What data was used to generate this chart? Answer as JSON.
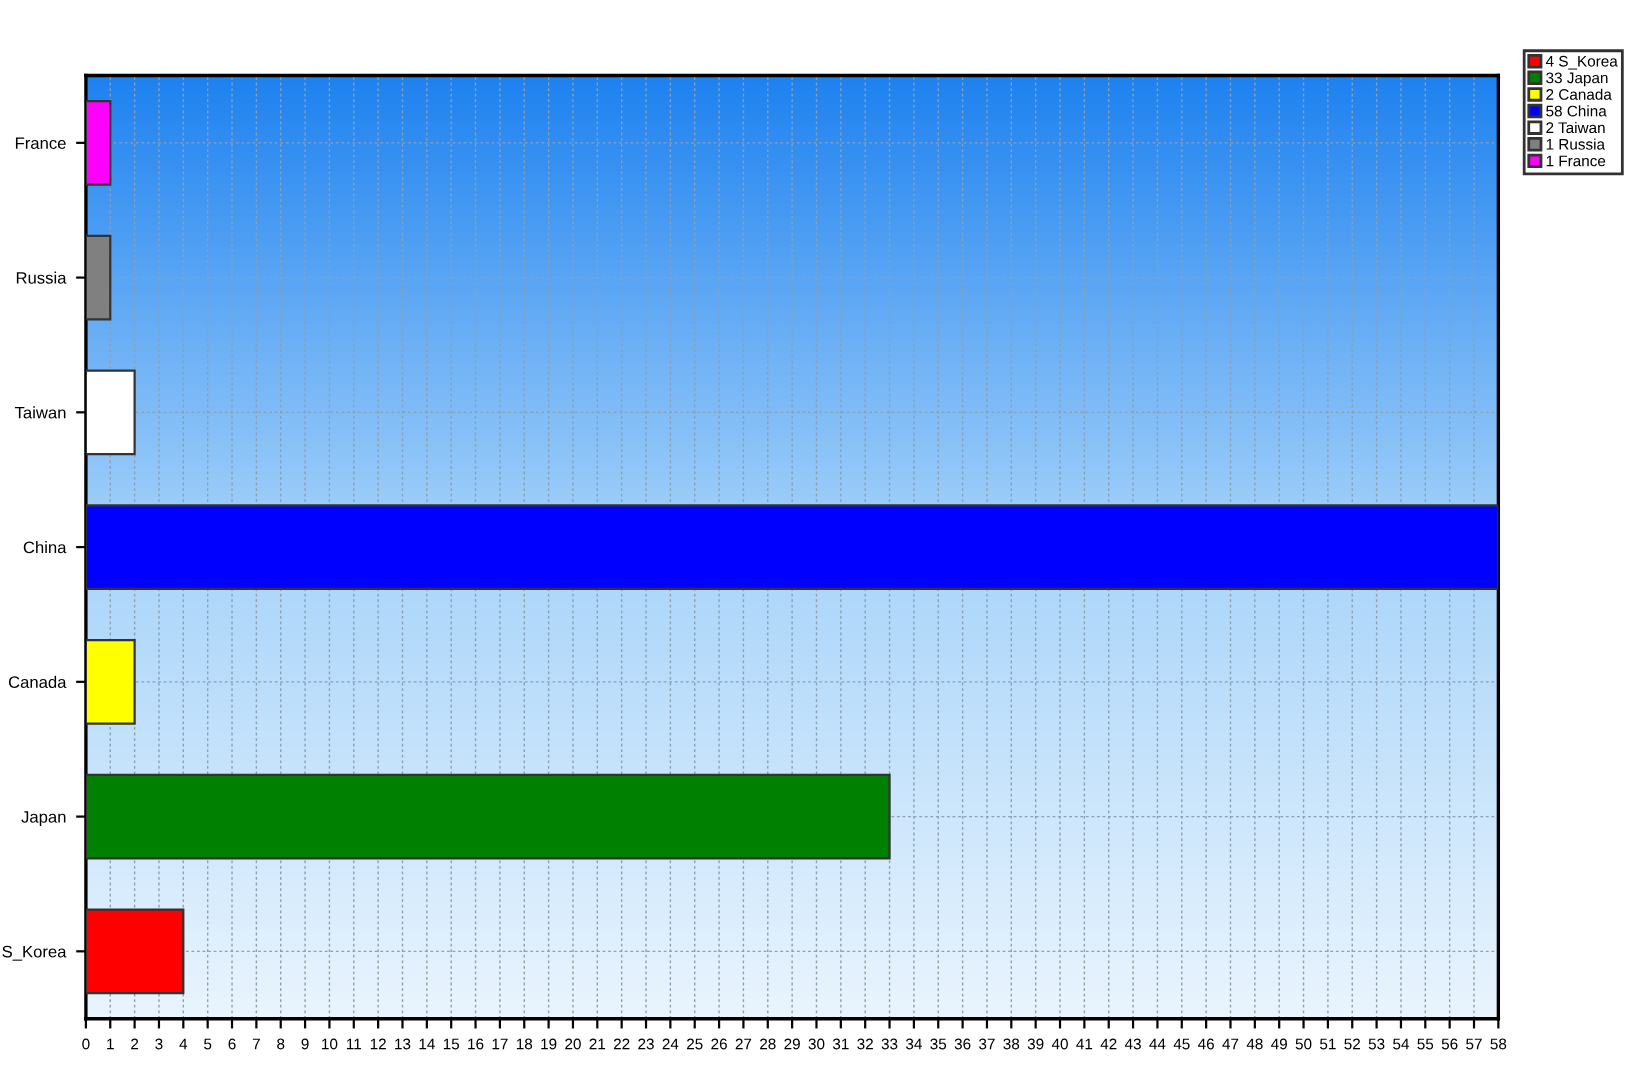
{
  "chart_data": {
    "type": "bar",
    "orientation": "horizontal",
    "categories": [
      "France",
      "Russia",
      "Taiwan",
      "China",
      "Canada",
      "Japan",
      "S_Korea"
    ],
    "series": [
      {
        "name": "4 S_Korea",
        "color": "#ff0000",
        "values": [
          null,
          null,
          null,
          null,
          null,
          null,
          4
        ]
      },
      {
        "name": "33 Japan",
        "color": "#008000",
        "values": [
          null,
          null,
          null,
          null,
          null,
          33,
          null
        ]
      },
      {
        "name": "2 Canada",
        "color": "#ffff00",
        "values": [
          null,
          null,
          null,
          null,
          2,
          null,
          null
        ]
      },
      {
        "name": "58 China",
        "color": "#0000ff",
        "values": [
          null,
          null,
          null,
          58,
          null,
          null,
          null
        ]
      },
      {
        "name": "2 Taiwan",
        "color": "#ffffff",
        "values": [
          null,
          null,
          2,
          null,
          null,
          null,
          null
        ]
      },
      {
        "name": "1 Russia",
        "color": "#808080",
        "values": [
          null,
          1,
          null,
          null,
          null,
          null,
          null
        ]
      },
      {
        "name": "1 France",
        "color": "#ff00ff",
        "values": [
          1,
          null,
          null,
          null,
          null,
          null,
          null
        ]
      }
    ],
    "xlim": [
      0,
      58
    ],
    "xticks": [
      0,
      1,
      2,
      3,
      4,
      5,
      6,
      7,
      8,
      9,
      10,
      11,
      12,
      13,
      14,
      15,
      16,
      17,
      18,
      19,
      20,
      21,
      22,
      23,
      24,
      25,
      26,
      27,
      28,
      29,
      30,
      31,
      32,
      33,
      34,
      35,
      36,
      37,
      38,
      39,
      40,
      41,
      42,
      43,
      44,
      45,
      46,
      47,
      48,
      49,
      50,
      51,
      52,
      53,
      54,
      55,
      56,
      57,
      58
    ],
    "grid": true,
    "legend": "top right"
  }
}
